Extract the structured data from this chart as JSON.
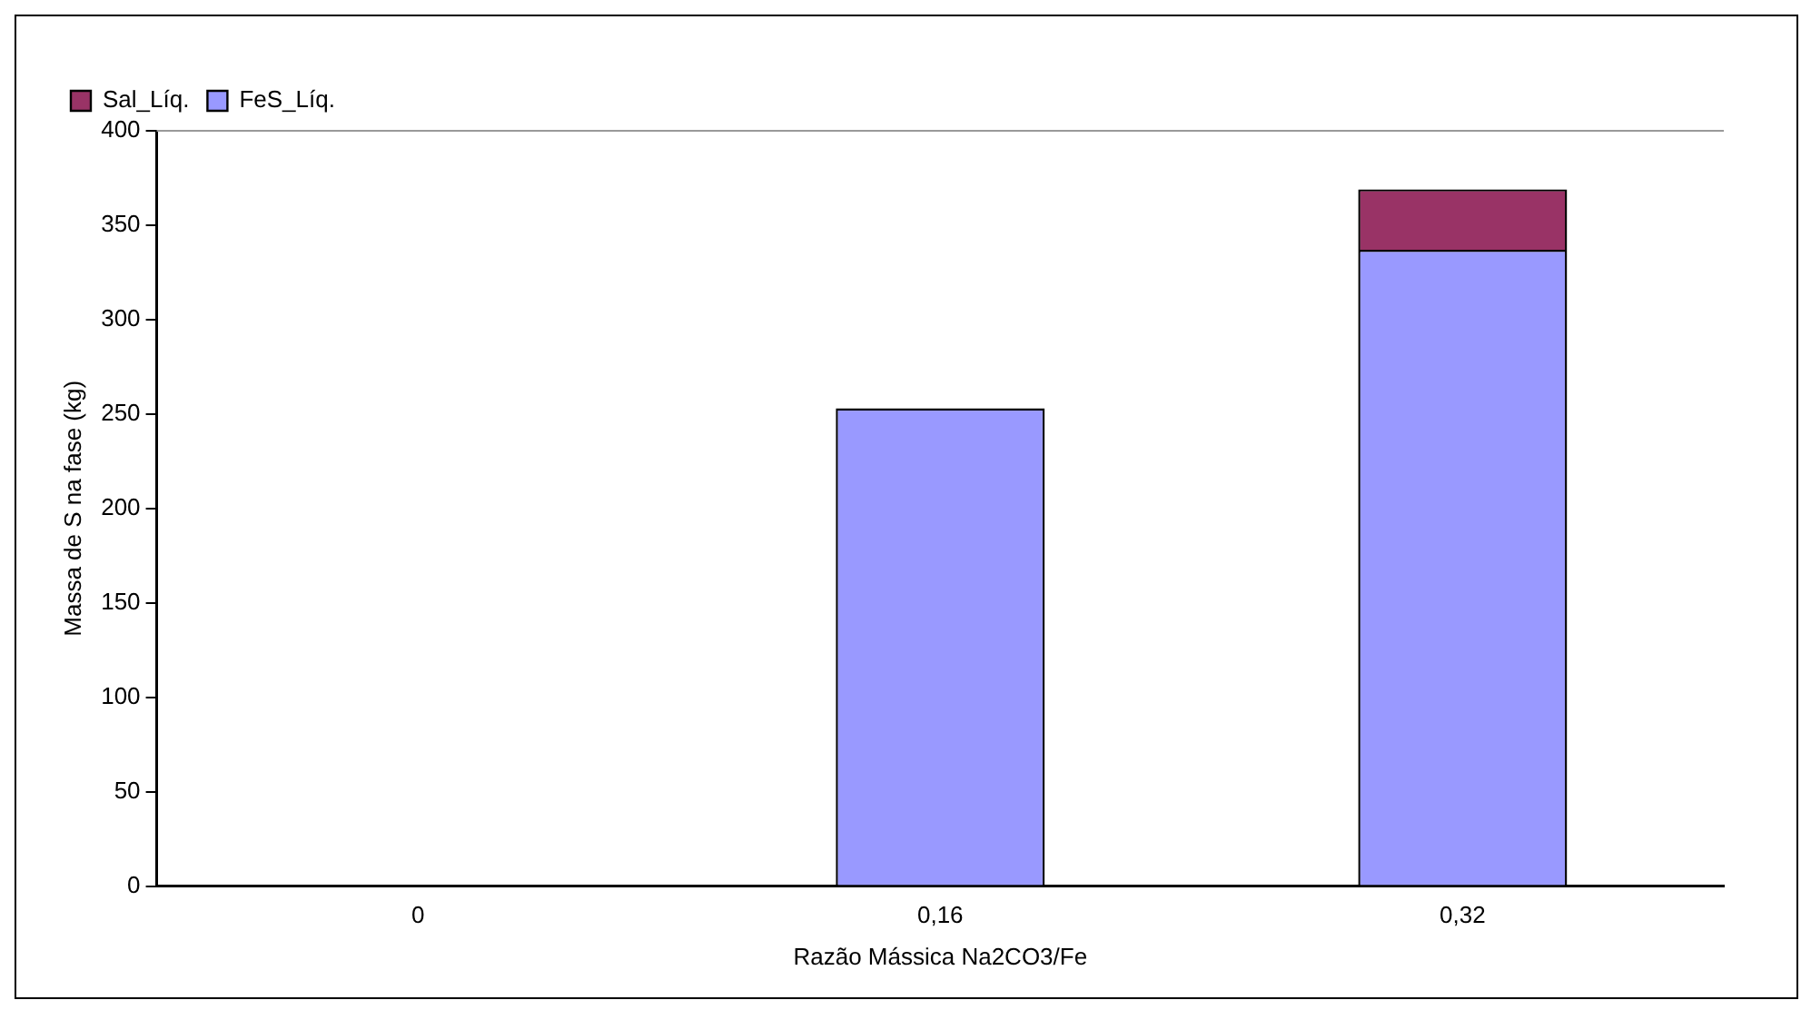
{
  "chart_data": {
    "type": "bar",
    "stacked": true,
    "xlabel": "Razão Mássica Na2CO3/Fe",
    "ylabel": "Massa de S na fase (kg)",
    "categories": [
      "0",
      "0,16",
      "0,32"
    ],
    "series": [
      {
        "name": "FeS_Líq.",
        "color": "#9999ff",
        "values": [
          0,
          253,
          337
        ]
      },
      {
        "name": "Sal_Líq.",
        "color": "#993366",
        "values": [
          0,
          0,
          32
        ]
      }
    ],
    "ylim": [
      0,
      400
    ],
    "yticks": [
      0,
      50,
      100,
      150,
      200,
      250,
      300,
      350,
      400
    ],
    "grid": false,
    "legend": "top left"
  }
}
